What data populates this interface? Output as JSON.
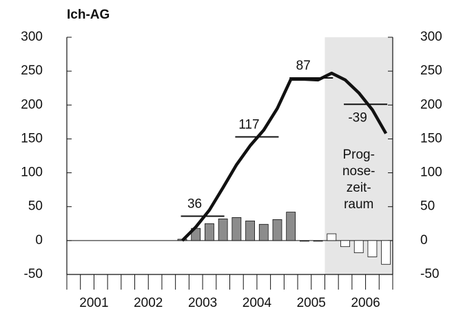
{
  "chart_data": {
    "type": "bar_line",
    "title": "Ich-AG",
    "categories": [
      "2001",
      "2002",
      "2003",
      "2004",
      "2005",
      "2006"
    ],
    "bars": {
      "values": [
        null,
        null,
        null,
        null,
        null,
        null,
        null,
        null,
        2,
        18,
        25,
        32,
        34,
        29,
        24,
        31,
        42,
        -1,
        -1,
        10,
        -9,
        -18,
        -24,
        -35
      ],
      "color": "#8c8c8c",
      "forecast_color": "#ffffff"
    },
    "line": {
      "values": [
        null,
        null,
        null,
        null,
        null,
        null,
        null,
        null,
        0,
        20,
        45,
        78,
        112,
        140,
        163,
        195,
        238,
        238,
        237,
        247,
        237,
        218,
        193,
        158
      ],
      "color": "#111111"
    },
    "annual_levels": [
      null,
      null,
      36,
      153,
      240,
      201
    ],
    "annual_changes": [
      null,
      null,
      36,
      117,
      87,
      -39
    ],
    "forecast": {
      "start": 19,
      "label_lines": [
        "Prog-",
        "nose-",
        "zeit-",
        "raum"
      ],
      "color": "#e6e6e6"
    },
    "ylim": [
      -50,
      300
    ],
    "yticks": [
      -50,
      0,
      50,
      100,
      150,
      200,
      250,
      300
    ],
    "y2lim": [
      -50,
      300
    ],
    "y2ticks": [
      -50,
      0,
      50,
      100,
      150,
      200,
      250,
      300
    ],
    "grid": false
  }
}
